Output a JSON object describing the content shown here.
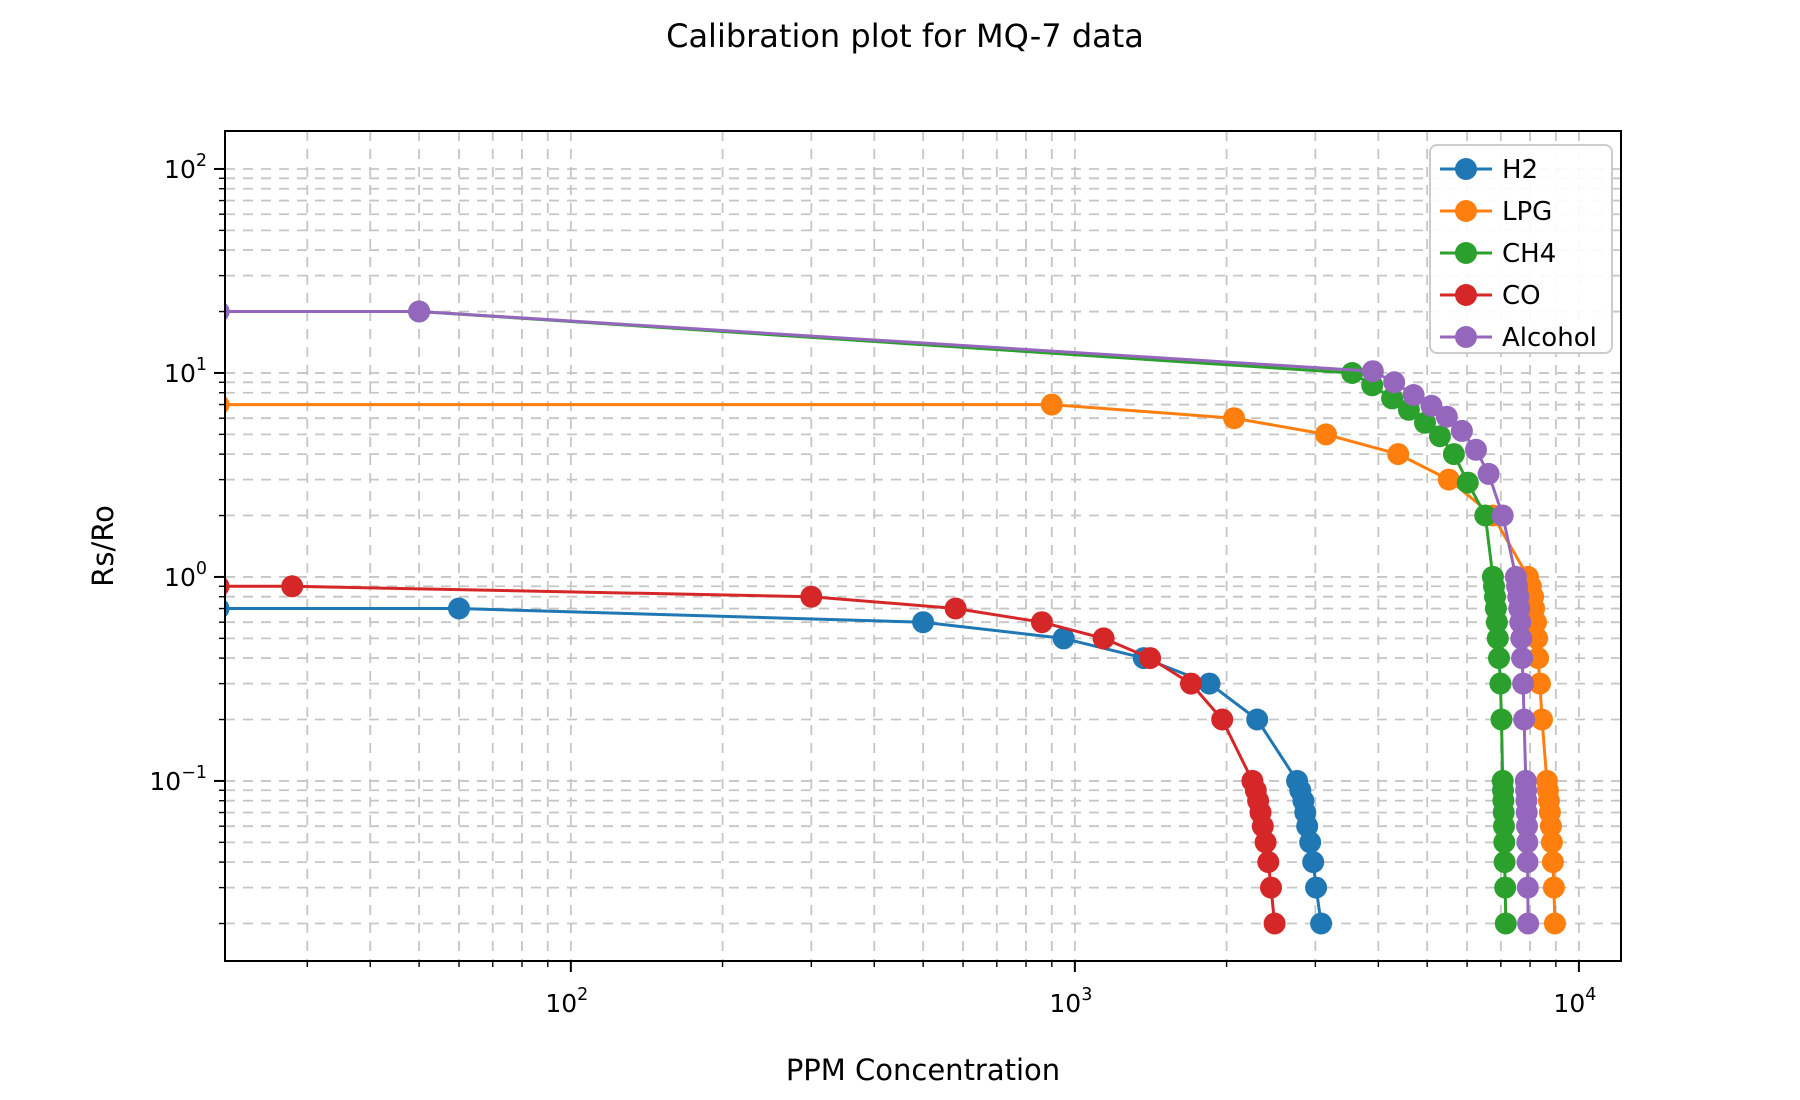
{
  "figure": {
    "title": "Calibration plot for MQ-7 data",
    "xlabel": "PPM Concentration",
    "ylabel": "Rs/Ro"
  },
  "chart_data": {
    "type": "line",
    "title": "Calibration plot for MQ-7 data",
    "xlabel": "PPM Concentration",
    "ylabel": "Rs/Ro",
    "xscale": "log",
    "yscale": "log",
    "xlim": [
      20.6,
      12120
    ],
    "ylim": [
      0.0131,
      153.5
    ],
    "grid": true,
    "grid_which": "major and minor",
    "grid_style": "dashed",
    "legend_position": "upper right",
    "x_ticks": [
      {
        "value": 100,
        "exp": "2"
      },
      {
        "value": 1000,
        "exp": "3"
      },
      {
        "value": 10000,
        "exp": "4"
      }
    ],
    "y_ticks": [
      {
        "value": 100,
        "exp": "2"
      },
      {
        "value": 10,
        "exp": "1"
      },
      {
        "value": 1,
        "exp": "0"
      },
      {
        "value": 0.1,
        "exp": "−1"
      }
    ],
    "series": [
      {
        "name": "H2",
        "color": "#1f77b4",
        "points": [
          [
            20,
            0.7
          ],
          [
            60,
            0.7
          ],
          [
            500,
            0.6
          ],
          [
            950,
            0.5
          ],
          [
            1370,
            0.4
          ],
          [
            1850,
            0.3
          ],
          [
            2300,
            0.2
          ],
          [
            2760,
            0.1
          ],
          [
            2800,
            0.09
          ],
          [
            2840,
            0.08
          ],
          [
            2865,
            0.07
          ],
          [
            2890,
            0.06
          ],
          [
            2930,
            0.05
          ],
          [
            2970,
            0.04
          ],
          [
            3010,
            0.03
          ],
          [
            3080,
            0.02
          ]
        ]
      },
      {
        "name": "LPG",
        "color": "#ff7f0e",
        "points": [
          [
            20,
            7
          ],
          [
            900,
            7
          ],
          [
            2070,
            6
          ],
          [
            3150,
            5
          ],
          [
            4380,
            4
          ],
          [
            5520,
            3
          ],
          [
            6750,
            2
          ],
          [
            7925,
            1.0
          ],
          [
            8030,
            0.9
          ],
          [
            8110,
            0.8
          ],
          [
            8150,
            0.7
          ],
          [
            8220,
            0.6
          ],
          [
            8260,
            0.5
          ],
          [
            8300,
            0.4
          ],
          [
            8370,
            0.3
          ],
          [
            8450,
            0.2
          ],
          [
            8640,
            0.1
          ],
          [
            8680,
            0.09
          ],
          [
            8720,
            0.08
          ],
          [
            8760,
            0.07
          ],
          [
            8800,
            0.06
          ],
          [
            8840,
            0.05
          ],
          [
            8880,
            0.04
          ],
          [
            8920,
            0.03
          ],
          [
            8960,
            0.02
          ]
        ]
      },
      {
        "name": "CH4",
        "color": "#2ca02c",
        "points": [
          [
            20,
            20
          ],
          [
            50,
            20
          ],
          [
            3550,
            10
          ],
          [
            3890,
            8.7
          ],
          [
            4260,
            7.5
          ],
          [
            4600,
            6.6
          ],
          [
            4950,
            5.7
          ],
          [
            5300,
            4.9
          ],
          [
            5650,
            4.0
          ],
          [
            6020,
            2.9
          ],
          [
            6520,
            2.0
          ],
          [
            6750,
            1.0
          ],
          [
            6785,
            0.9
          ],
          [
            6815,
            0.8
          ],
          [
            6845,
            0.7
          ],
          [
            6875,
            0.6
          ],
          [
            6905,
            0.5
          ],
          [
            6940,
            0.4
          ],
          [
            6985,
            0.3
          ],
          [
            7020,
            0.2
          ],
          [
            7060,
            0.1
          ],
          [
            7070,
            0.09
          ],
          [
            7082,
            0.08
          ],
          [
            7092,
            0.07
          ],
          [
            7102,
            0.06
          ],
          [
            7112,
            0.05
          ],
          [
            7122,
            0.04
          ],
          [
            7140,
            0.03
          ],
          [
            7160,
            0.02
          ]
        ]
      },
      {
        "name": "CO",
        "color": "#d62728",
        "points": [
          [
            20,
            0.9
          ],
          [
            28,
            0.9
          ],
          [
            300,
            0.8
          ],
          [
            580,
            0.7
          ],
          [
            860,
            0.6
          ],
          [
            1140,
            0.5
          ],
          [
            1410,
            0.4
          ],
          [
            1700,
            0.3
          ],
          [
            1960,
            0.2
          ],
          [
            2250,
            0.1
          ],
          [
            2285,
            0.09
          ],
          [
            2310,
            0.08
          ],
          [
            2335,
            0.07
          ],
          [
            2360,
            0.06
          ],
          [
            2390,
            0.05
          ],
          [
            2420,
            0.04
          ],
          [
            2450,
            0.03
          ],
          [
            2490,
            0.02
          ]
        ]
      },
      {
        "name": "Alcohol",
        "color": "#9467bd",
        "points": [
          [
            20,
            20
          ],
          [
            50,
            20
          ],
          [
            3900,
            10.2
          ],
          [
            4300,
            9.0
          ],
          [
            4700,
            7.8
          ],
          [
            5100,
            6.9
          ],
          [
            5470,
            6.1
          ],
          [
            5860,
            5.2
          ],
          [
            6250,
            4.2
          ],
          [
            6620,
            3.2
          ],
          [
            7060,
            2.0
          ],
          [
            7500,
            1.0
          ],
          [
            7540,
            0.9
          ],
          [
            7580,
            0.8
          ],
          [
            7615,
            0.7
          ],
          [
            7650,
            0.6
          ],
          [
            7685,
            0.5
          ],
          [
            7715,
            0.4
          ],
          [
            7750,
            0.3
          ],
          [
            7785,
            0.2
          ],
          [
            7845,
            0.1
          ],
          [
            7857,
            0.09
          ],
          [
            7868,
            0.08
          ],
          [
            7878,
            0.07
          ],
          [
            7888,
            0.06
          ],
          [
            7898,
            0.05
          ],
          [
            7908,
            0.04
          ],
          [
            7918,
            0.03
          ],
          [
            7930,
            0.02
          ]
        ]
      }
    ],
    "style": {
      "background": "#ffffff",
      "grid_color": "#c6c6c6",
      "spine_color": "#000000",
      "legend_border_color": "#cccccc",
      "line_width": 3,
      "marker_radius": 11
    }
  }
}
